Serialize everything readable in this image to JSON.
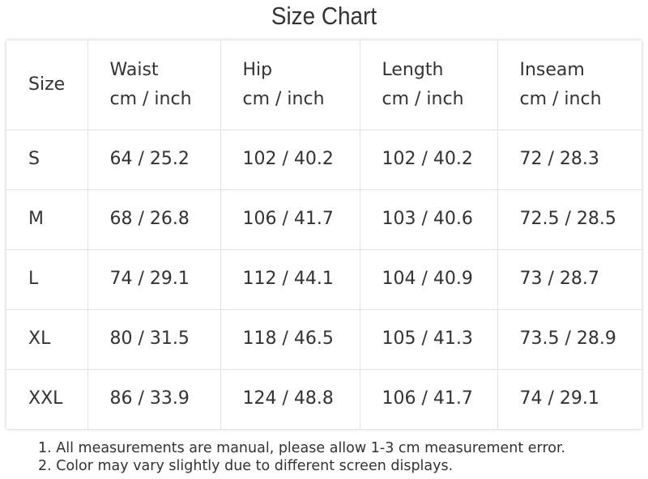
{
  "title": "Size Chart",
  "table": {
    "header": [
      [
        "Size"
      ],
      [
        "Waist",
        "cm / inch"
      ],
      [
        "Hip",
        "cm / inch"
      ],
      [
        "Length",
        "cm / inch"
      ],
      [
        "Inseam",
        "cm / inch"
      ]
    ],
    "rows": [
      [
        "S",
        "64 / 25.2",
        "102 / 40.2",
        "102 / 40.2",
        "72 / 28.3"
      ],
      [
        "M",
        "68 / 26.8",
        "106 / 41.7",
        "103 / 40.6",
        "72.5 / 28.5"
      ],
      [
        "L",
        "74 / 29.1",
        "112 / 44.1",
        "104 / 40.9",
        "73 / 28.7"
      ],
      [
        "XL",
        "80 / 31.5",
        "118 / 46.5",
        "105 / 41.3",
        "73.5 / 28.9"
      ],
      [
        "XXL",
        "86 / 33.9",
        "124 / 48.8",
        "106 / 41.7",
        "74 / 29.1"
      ]
    ]
  },
  "notes": [
    "1. All measurements are manual, please allow 1-3 cm measurement error.",
    "2. Color may vary slightly due to different screen displays."
  ]
}
